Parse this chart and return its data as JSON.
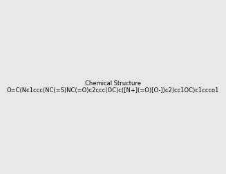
{
  "smiles": "O=C(Nc1ccc(NC(=S)NC(=O)c2ccc(OC)c([N+](=O)[O-])c2)cc1OC)c1ccco1",
  "image_size": 300,
  "background_color": "#e8e8e8",
  "title": ""
}
